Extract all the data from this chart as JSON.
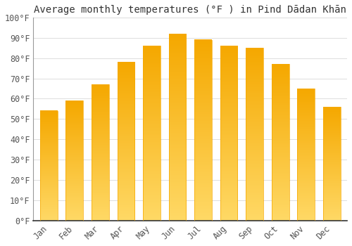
{
  "title": "Average monthly temperatures (°F ) in Pind Dādan Khān",
  "months": [
    "Jan",
    "Feb",
    "Mar",
    "Apr",
    "May",
    "Jun",
    "Jul",
    "Aug",
    "Sep",
    "Oct",
    "Nov",
    "Dec"
  ],
  "values": [
    54,
    59,
    67,
    78,
    86,
    92,
    89,
    86,
    85,
    77,
    65,
    56
  ],
  "bar_color_dark": "#F5A800",
  "bar_color_light": "#FFD966",
  "background_color": "#FFFFFF",
  "grid_color": "#DDDDDD",
  "ylim": [
    0,
    100
  ],
  "yticks": [
    0,
    10,
    20,
    30,
    40,
    50,
    60,
    70,
    80,
    90,
    100
  ],
  "title_fontsize": 10,
  "tick_fontsize": 8.5,
  "font_family": "monospace"
}
